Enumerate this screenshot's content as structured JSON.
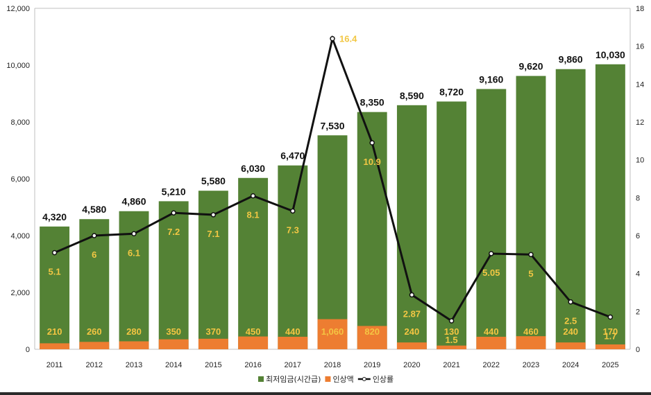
{
  "chart_data": {
    "type": "bar",
    "categories": [
      "2011",
      "2012",
      "2013",
      "2014",
      "2015",
      "2016",
      "2017",
      "2018",
      "2019",
      "2020",
      "2021",
      "2022",
      "2023",
      "2024",
      "2025"
    ],
    "series": [
      {
        "name": "최저임금(시간급)",
        "kind": "bar",
        "color": "#548235",
        "values": [
          4320,
          4580,
          4860,
          5210,
          5580,
          6030,
          6470,
          7530,
          8350,
          8590,
          8720,
          9160,
          9620,
          9860,
          10030
        ],
        "labels": [
          "4,320",
          "4,580",
          "4,860",
          "5,210",
          "5,580",
          "6,030",
          "6,470",
          "7,530",
          "8,350",
          "8,590",
          "8,720",
          "9,160",
          "9,620",
          "9,860",
          "10,030"
        ]
      },
      {
        "name": "인상액",
        "kind": "bar",
        "color": "#ed7d31",
        "values": [
          210,
          260,
          280,
          350,
          370,
          450,
          440,
          1060,
          820,
          240,
          130,
          440,
          460,
          240,
          170
        ],
        "labels": [
          "210",
          "260",
          "280",
          "350",
          "370",
          "450",
          "440",
          "1,060",
          "820",
          "240",
          "130",
          "440",
          "460",
          "240",
          "170"
        ]
      },
      {
        "name": "인상률",
        "kind": "line",
        "axis": "right",
        "color": "#111111",
        "values": [
          5.1,
          6,
          6.1,
          7.2,
          7.1,
          8.1,
          7.3,
          16.4,
          10.9,
          2.87,
          1.5,
          5.05,
          5,
          2.5,
          1.7
        ],
        "labels": [
          "5.1",
          "6",
          "6.1",
          "7.2",
          "7.1",
          "8.1",
          "7.3",
          "16.4",
          "10.9",
          "2.87",
          "1.5",
          "5.05",
          "5",
          "2.5",
          "1.7"
        ]
      }
    ],
    "y_left": {
      "min": 0,
      "max": 12000,
      "ticks": [
        "0",
        "2,000",
        "4,000",
        "6,000",
        "8,000",
        "10,000",
        "12,000"
      ],
      "tick_values": [
        0,
        2000,
        4000,
        6000,
        8000,
        10000,
        12000
      ]
    },
    "y_right": {
      "min": 0,
      "max": 18,
      "ticks": [
        "0",
        "2",
        "4",
        "6",
        "8",
        "10",
        "12",
        "14",
        "16",
        "18"
      ],
      "tick_values": [
        0,
        2,
        4,
        6,
        8,
        10,
        12,
        14,
        16,
        18
      ]
    },
    "grid": false,
    "legend_position": "bottom",
    "label_color": "#f4c542"
  }
}
